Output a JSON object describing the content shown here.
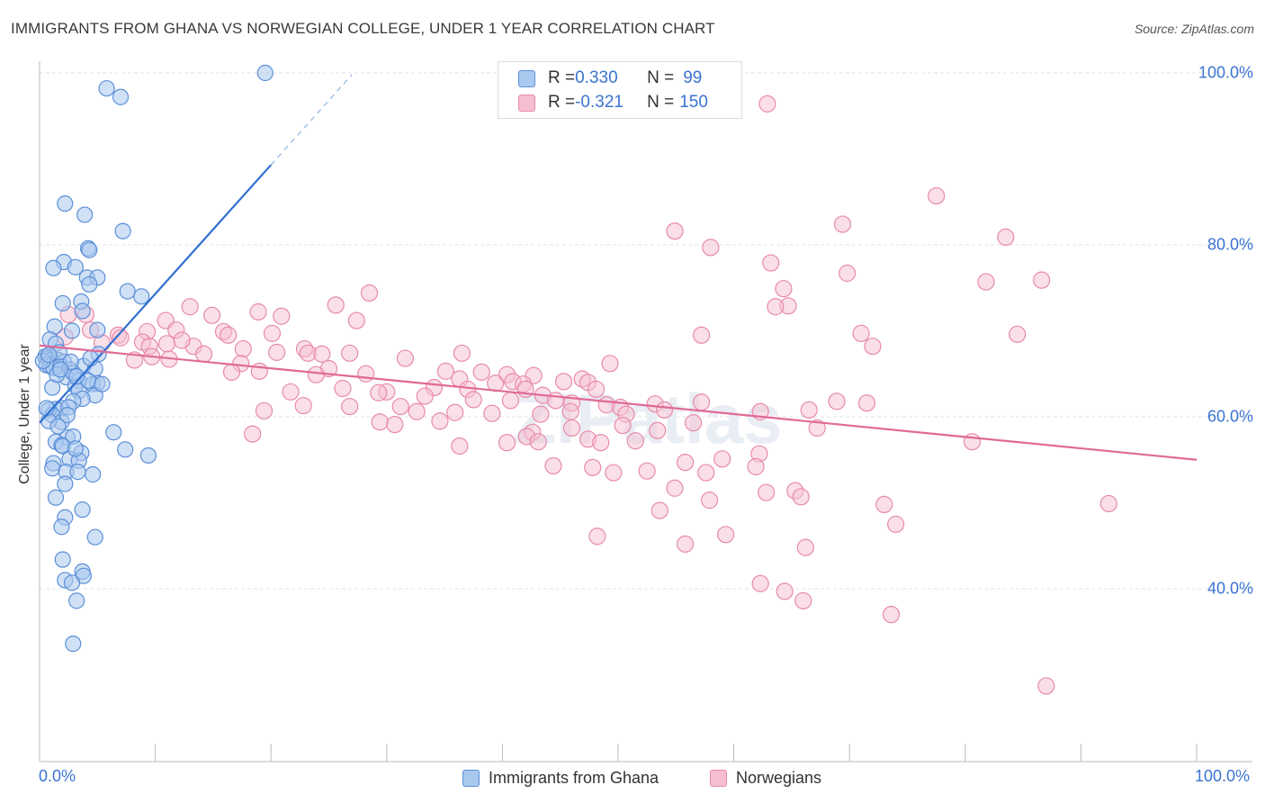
{
  "title": "IMMIGRANTS FROM GHANA VS NORWEGIAN COLLEGE, UNDER 1 YEAR CORRELATION CHART",
  "source": "Source: ZipAtlas.com",
  "watermark": "ZIPatlas",
  "colors": {
    "blue_fill": "#a9c8ee",
    "blue_stroke": "#5b8fd8",
    "blue_line": "#2f6fd0",
    "pink_fill": "#f6bfd1",
    "pink_stroke": "#e88aaa",
    "pink_line": "#e06a96",
    "tick_label": "#3a74d0",
    "grid": "#e3e3e3"
  },
  "legend": {
    "rows": [
      {
        "r_label": "R = ",
        "r_value": "0.330",
        "n_label": "N = ",
        "n_value": "99"
      },
      {
        "r_label": "R = ",
        "r_value": "-0.321",
        "n_label": "N = ",
        "n_value": "150"
      }
    ]
  },
  "bottom_legend": [
    "Immigrants from Ghana",
    "Norwegians"
  ],
  "chart_data": {
    "type": "scatter",
    "title": "IMMIGRANTS FROM GHANA VS NORWEGIAN COLLEGE, UNDER 1 YEAR CORRELATION CHART",
    "xlabel": "",
    "ylabel": "College, Under 1 year",
    "xlim": [
      0,
      100
    ],
    "ylim": [
      20,
      102
    ],
    "x_tick_labels": [
      "0.0%",
      "100.0%"
    ],
    "y_ticks": [
      40,
      60,
      80,
      100
    ],
    "y_tick_labels": [
      "40.0%",
      "60.0%",
      "80.0%",
      "100.0%"
    ],
    "grid": true,
    "series": [
      {
        "name": "Immigrants from Ghana",
        "R": 0.33,
        "N": 99,
        "trend": {
          "x": [
            0,
            20
          ],
          "y": [
            59.3,
            89.3
          ],
          "dashed_to": {
            "x": 27,
            "y": 99.8
          }
        },
        "points": [
          [
            19.5,
            100
          ],
          [
            5.8,
            98.2
          ],
          [
            7.0,
            97.2
          ],
          [
            2.2,
            84.8
          ],
          [
            3.9,
            83.5
          ],
          [
            7.2,
            81.6
          ],
          [
            4.2,
            79.6
          ],
          [
            4.3,
            79.4
          ],
          [
            2.1,
            78.0
          ],
          [
            1.2,
            77.3
          ],
          [
            3.1,
            77.4
          ],
          [
            4.1,
            76.2
          ],
          [
            5.0,
            76.2
          ],
          [
            4.3,
            75.4
          ],
          [
            7.6,
            74.6
          ],
          [
            8.8,
            74.0
          ],
          [
            3.6,
            73.4
          ],
          [
            2.0,
            73.2
          ],
          [
            3.7,
            72.3
          ],
          [
            1.3,
            70.5
          ],
          [
            2.8,
            70.0
          ],
          [
            5.0,
            70.1
          ],
          [
            0.9,
            69.0
          ],
          [
            1.4,
            68.5
          ],
          [
            0.5,
            67.0
          ],
          [
            0.7,
            66.8
          ],
          [
            1.0,
            66.6
          ],
          [
            1.3,
            66.3
          ],
          [
            1.6,
            66.6
          ],
          [
            2.1,
            66.4
          ],
          [
            0.6,
            66.0
          ],
          [
            0.9,
            65.9
          ],
          [
            1.2,
            65.7
          ],
          [
            1.8,
            65.9
          ],
          [
            2.6,
            65.5
          ],
          [
            3.8,
            65.9
          ],
          [
            4.8,
            65.6
          ],
          [
            5.1,
            67.3
          ],
          [
            2.3,
            64.6
          ],
          [
            3.4,
            64.2
          ],
          [
            4.6,
            63.8
          ],
          [
            5.0,
            63.9
          ],
          [
            3.1,
            63.6
          ],
          [
            1.1,
            63.4
          ],
          [
            3.4,
            63.0
          ],
          [
            4.8,
            62.5
          ],
          [
            3.7,
            62.1
          ],
          [
            2.9,
            61.8
          ],
          [
            1.9,
            61.0
          ],
          [
            1.4,
            60.9
          ],
          [
            2.5,
            61.1
          ],
          [
            0.8,
            60.8
          ],
          [
            1.1,
            60.2
          ],
          [
            1.9,
            59.4
          ],
          [
            0.8,
            59.5
          ],
          [
            6.4,
            58.2
          ],
          [
            2.4,
            57.6
          ],
          [
            2.9,
            57.7
          ],
          [
            1.4,
            57.1
          ],
          [
            1.9,
            56.7
          ],
          [
            2.0,
            56.6
          ],
          [
            7.4,
            56.2
          ],
          [
            9.4,
            55.5
          ],
          [
            3.6,
            55.8
          ],
          [
            2.6,
            55.1
          ],
          [
            3.4,
            54.9
          ],
          [
            1.2,
            54.6
          ],
          [
            1.1,
            54.0
          ],
          [
            2.3,
            53.6
          ],
          [
            3.3,
            53.6
          ],
          [
            4.6,
            53.3
          ],
          [
            2.2,
            52.2
          ],
          [
            1.4,
            50.6
          ],
          [
            3.7,
            49.2
          ],
          [
            2.2,
            48.3
          ],
          [
            1.9,
            47.2
          ],
          [
            4.8,
            46.0
          ],
          [
            2.0,
            43.4
          ],
          [
            3.7,
            42.0
          ],
          [
            3.8,
            41.5
          ],
          [
            2.2,
            41.0
          ],
          [
            2.8,
            40.7
          ],
          [
            3.2,
            38.6
          ],
          [
            2.9,
            33.6
          ],
          [
            1.5,
            64.9
          ],
          [
            0.6,
            61.0
          ],
          [
            2.9,
            65.1
          ],
          [
            4.2,
            64.2
          ],
          [
            5.4,
            63.8
          ],
          [
            1.7,
            67.5
          ],
          [
            2.7,
            66.4
          ],
          [
            0.3,
            66.5
          ],
          [
            0.8,
            67.2
          ],
          [
            1.8,
            65.5
          ],
          [
            3.2,
            64.7
          ],
          [
            4.4,
            66.8
          ],
          [
            2.4,
            60.2
          ],
          [
            3.1,
            56.3
          ],
          [
            1.6,
            58.9
          ]
        ]
      },
      {
        "name": "Norwegians",
        "R": -0.321,
        "N": 150,
        "trend": {
          "x": [
            0,
            100
          ],
          "y": [
            68.3,
            55.0
          ]
        },
        "points": [
          [
            62.9,
            96.4
          ],
          [
            77.5,
            85.7
          ],
          [
            69.4,
            82.4
          ],
          [
            54.9,
            81.6
          ],
          [
            83.5,
            80.9
          ],
          [
            58.0,
            79.7
          ],
          [
            63.2,
            77.9
          ],
          [
            69.8,
            76.7
          ],
          [
            86.6,
            75.9
          ],
          [
            81.8,
            75.7
          ],
          [
            64.3,
            74.9
          ],
          [
            28.5,
            74.4
          ],
          [
            25.6,
            73.0
          ],
          [
            64.7,
            72.9
          ],
          [
            63.6,
            72.8
          ],
          [
            13.0,
            72.8
          ],
          [
            18.9,
            72.2
          ],
          [
            14.9,
            71.8
          ],
          [
            4.0,
            71.9
          ],
          [
            20.9,
            71.7
          ],
          [
            2.5,
            71.9
          ],
          [
            10.9,
            71.2
          ],
          [
            27.4,
            71.2
          ],
          [
            4.4,
            70.1
          ],
          [
            6.8,
            69.5
          ],
          [
            9.3,
            69.9
          ],
          [
            11.8,
            70.1
          ],
          [
            15.9,
            69.9
          ],
          [
            20.1,
            69.7
          ],
          [
            71.0,
            69.7
          ],
          [
            84.5,
            69.6
          ],
          [
            57.2,
            69.5
          ],
          [
            16.3,
            69.5
          ],
          [
            7.0,
            69.2
          ],
          [
            2.2,
            69.3
          ],
          [
            8.9,
            68.7
          ],
          [
            5.4,
            68.6
          ],
          [
            11.0,
            68.5
          ],
          [
            9.5,
            68.2
          ],
          [
            13.3,
            68.2
          ],
          [
            17.6,
            67.9
          ],
          [
            22.9,
            67.9
          ],
          [
            20.5,
            67.5
          ],
          [
            23.2,
            67.4
          ],
          [
            26.8,
            67.4
          ],
          [
            24.4,
            67.3
          ],
          [
            31.6,
            66.8
          ],
          [
            36.5,
            67.4
          ],
          [
            49.3,
            66.2
          ],
          [
            72.0,
            68.2
          ],
          [
            11.2,
            66.7
          ],
          [
            8.2,
            66.6
          ],
          [
            17.4,
            66.2
          ],
          [
            25.0,
            65.6
          ],
          [
            19.0,
            65.3
          ],
          [
            16.6,
            65.2
          ],
          [
            23.9,
            64.9
          ],
          [
            28.2,
            65.0
          ],
          [
            35.1,
            65.3
          ],
          [
            38.2,
            65.2
          ],
          [
            40.4,
            64.9
          ],
          [
            42.7,
            64.8
          ],
          [
            46.9,
            64.4
          ],
          [
            36.3,
            64.4
          ],
          [
            40.9,
            64.1
          ],
          [
            45.3,
            64.1
          ],
          [
            39.4,
            63.9
          ],
          [
            41.8,
            63.8
          ],
          [
            47.4,
            64.0
          ],
          [
            26.2,
            63.3
          ],
          [
            30.0,
            62.9
          ],
          [
            21.7,
            62.9
          ],
          [
            34.1,
            63.4
          ],
          [
            37.0,
            63.2
          ],
          [
            42.0,
            63.2
          ],
          [
            48.1,
            63.2
          ],
          [
            33.3,
            62.4
          ],
          [
            29.3,
            62.8
          ],
          [
            37.5,
            62.0
          ],
          [
            40.7,
            61.9
          ],
          [
            43.5,
            62.5
          ],
          [
            44.6,
            61.9
          ],
          [
            46.0,
            61.6
          ],
          [
            53.2,
            61.5
          ],
          [
            57.2,
            61.7
          ],
          [
            68.9,
            61.8
          ],
          [
            71.5,
            61.6
          ],
          [
            26.8,
            61.2
          ],
          [
            31.2,
            61.2
          ],
          [
            22.8,
            61.3
          ],
          [
            19.4,
            60.7
          ],
          [
            32.6,
            60.6
          ],
          [
            35.9,
            60.5
          ],
          [
            39.1,
            60.4
          ],
          [
            43.3,
            60.3
          ],
          [
            45.9,
            60.6
          ],
          [
            49.0,
            61.4
          ],
          [
            50.2,
            61.1
          ],
          [
            54.0,
            60.8
          ],
          [
            50.7,
            60.3
          ],
          [
            62.3,
            60.6
          ],
          [
            66.5,
            60.8
          ],
          [
            29.4,
            59.4
          ],
          [
            30.7,
            59.1
          ],
          [
            56.5,
            59.3
          ],
          [
            50.4,
            59.0
          ],
          [
            46.0,
            58.7
          ],
          [
            53.4,
            58.4
          ],
          [
            67.2,
            58.7
          ],
          [
            42.6,
            58.2
          ],
          [
            18.4,
            58.0
          ],
          [
            42.1,
            57.7
          ],
          [
            47.4,
            57.4
          ],
          [
            48.5,
            57.0
          ],
          [
            43.1,
            57.1
          ],
          [
            36.3,
            56.6
          ],
          [
            40.4,
            57.0
          ],
          [
            62.2,
            55.7
          ],
          [
            59.0,
            55.1
          ],
          [
            55.8,
            54.7
          ],
          [
            80.6,
            57.1
          ],
          [
            44.4,
            54.3
          ],
          [
            47.8,
            54.1
          ],
          [
            52.5,
            53.7
          ],
          [
            49.6,
            53.5
          ],
          [
            57.6,
            53.5
          ],
          [
            61.9,
            54.2
          ],
          [
            54.9,
            51.7
          ],
          [
            62.8,
            51.2
          ],
          [
            65.3,
            51.4
          ],
          [
            57.9,
            50.3
          ],
          [
            65.8,
            50.7
          ],
          [
            73.0,
            49.8
          ],
          [
            92.4,
            49.9
          ],
          [
            53.6,
            49.1
          ],
          [
            48.2,
            46.1
          ],
          [
            66.2,
            44.8
          ],
          [
            55.8,
            45.2
          ],
          [
            62.3,
            40.6
          ],
          [
            59.3,
            46.3
          ],
          [
            64.4,
            39.7
          ],
          [
            73.6,
            37.0
          ],
          [
            87.0,
            28.7
          ],
          [
            66.0,
            38.6
          ],
          [
            74.0,
            47.5
          ],
          [
            51.5,
            57.2
          ],
          [
            34.6,
            59.5
          ],
          [
            12.3,
            68.9
          ],
          [
            14.2,
            67.3
          ],
          [
            9.7,
            67.0
          ]
        ]
      }
    ]
  }
}
